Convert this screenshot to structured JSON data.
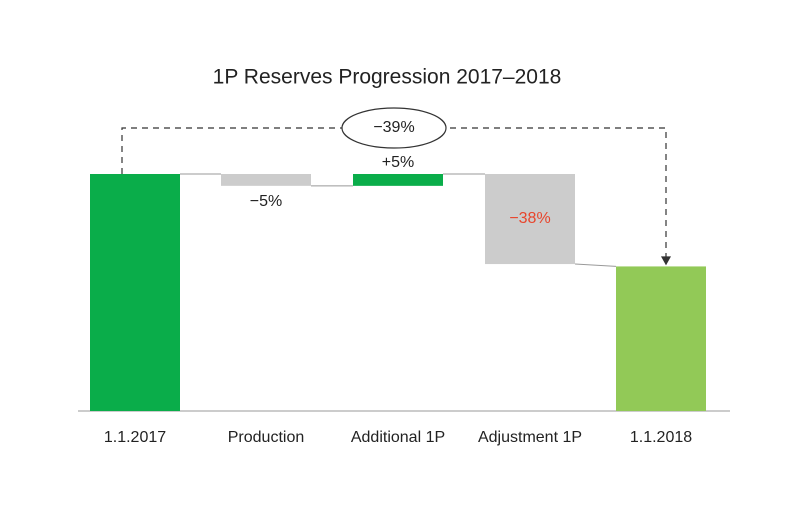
{
  "chart_data": {
    "type": "waterfall",
    "title": "1P Reserves Progression 2017–2018",
    "categories": [
      "1.1.2017",
      "Production",
      "Additional 1P",
      "Adjustment 1P",
      "1.1.2018"
    ],
    "values": [
      100,
      -5,
      5,
      -38,
      61
    ],
    "value_labels": [
      null,
      "−5%",
      "+5%",
      "−38%",
      null
    ],
    "totals": [
      true,
      false,
      false,
      false,
      true
    ],
    "colors": [
      "#0aad4a",
      "#cccccc",
      "#0aad4a",
      "#cccccc",
      "#92c957"
    ],
    "label_colors": [
      null,
      "#222222",
      "#222222",
      "#e8452c",
      null
    ],
    "ylim": [
      0,
      100
    ],
    "total_change": {
      "value": -39,
      "label": "−39%"
    }
  }
}
